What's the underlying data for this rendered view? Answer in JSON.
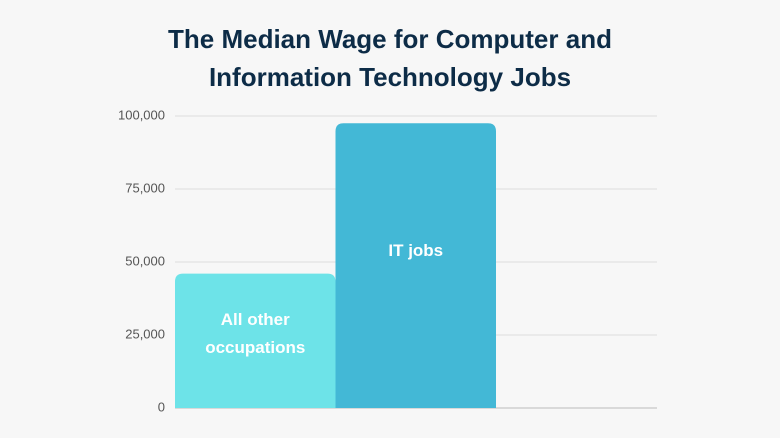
{
  "chart_data": {
    "type": "bar",
    "title": "The Median Wage for Computer and Information Technology Jobs",
    "categories": [
      "All other occupations",
      "IT jobs"
    ],
    "values": [
      46000,
      97500
    ],
    "colors": [
      "#6de3e8",
      "#43b8d6"
    ],
    "ylim": [
      0,
      100000
    ],
    "yticks": [
      0,
      {
        "value": 25000,
        "label": "25,000"
      },
      {
        "value": 50000,
        "label": "50,000"
      },
      {
        "value": 75000,
        "label": "75,000"
      },
      {
        "value": 100000,
        "label": "100,000"
      }
    ],
    "grid": true
  }
}
